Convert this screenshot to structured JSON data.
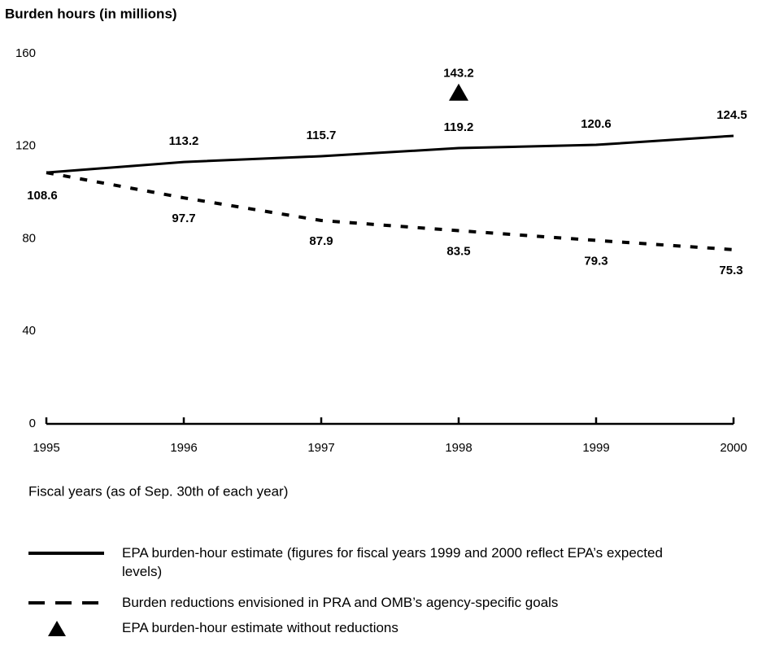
{
  "chart_data": {
    "type": "line",
    "title": "Burden hours (in millions)",
    "x_label": "Fiscal years (as of Sep. 30th of each year)",
    "x": [
      1995,
      1996,
      1997,
      1998,
      1999,
      2000
    ],
    "xlim": [
      1995,
      2000
    ],
    "xticks": [
      1995,
      1996,
      1997,
      1998,
      1999,
      2000
    ],
    "ylim": [
      0,
      160
    ],
    "yticks": [
      0,
      40,
      80,
      120,
      160
    ],
    "grid": false,
    "series": [
      {
        "name": "EPA burden-hour estimate (figures for fiscal years 1999 and 2000 reflect EPA’s expected levels)",
        "color": "#000000",
        "style": "solid",
        "values": [
          108.6,
          113.2,
          115.7,
          119.2,
          120.6,
          124.5
        ]
      },
      {
        "name": "Burden reductions envisioned in PRA and OMB’s agency-specific goals",
        "color": "#000000",
        "style": "dashed",
        "values": [
          108.6,
          97.7,
          87.9,
          83.5,
          79.3,
          75.3
        ]
      }
    ],
    "points": {
      "name": "EPA burden-hour estimate without reductions",
      "color": "#000000",
      "marker": "triangle",
      "x": [
        1998
      ],
      "values": [
        143.2
      ]
    }
  }
}
